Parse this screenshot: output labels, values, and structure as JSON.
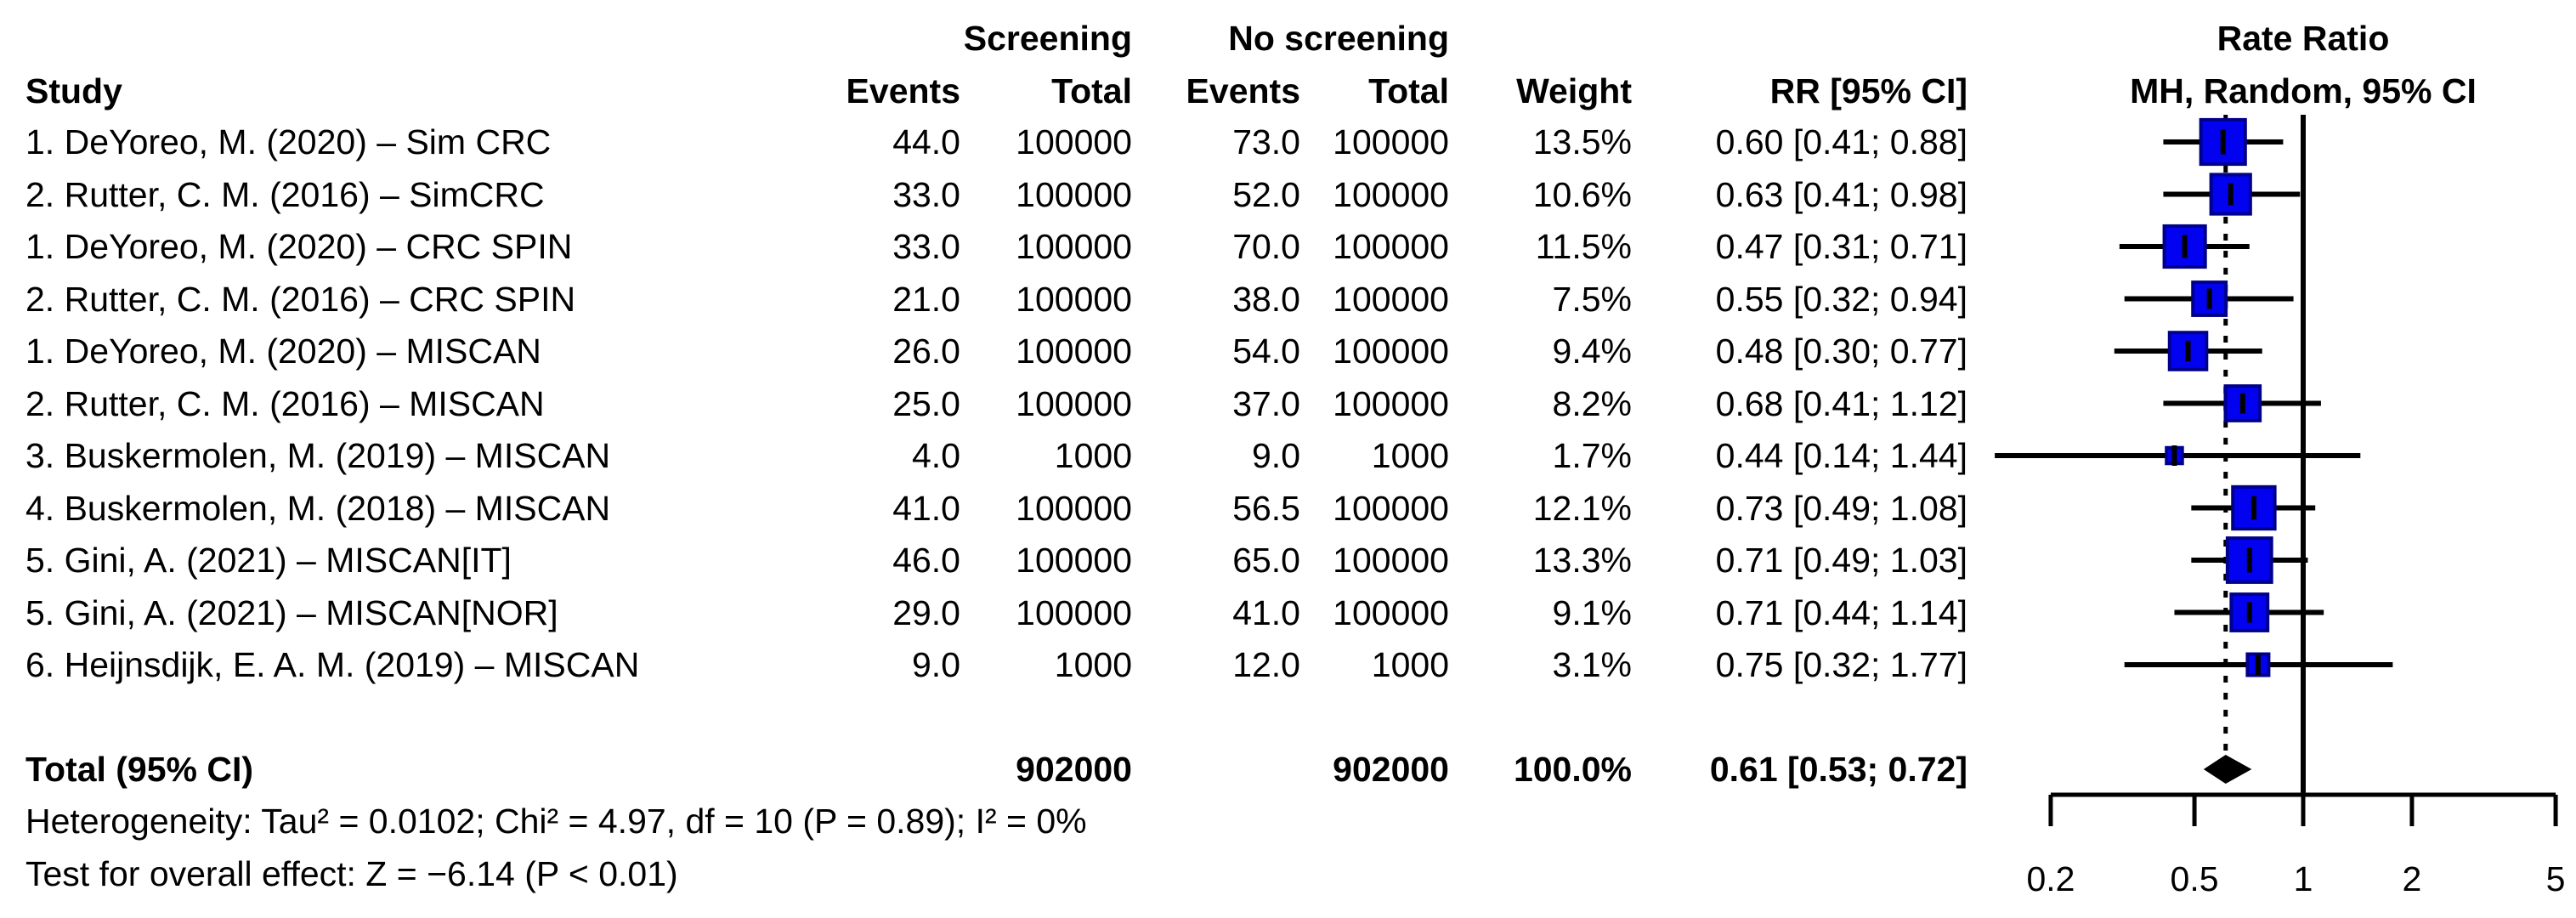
{
  "headers": {
    "study": "Study",
    "screening_group": "Screening",
    "no_screening_group": "No screening",
    "events": "Events",
    "total": "Total",
    "weight": "Weight",
    "rr_ci": "RR [95% CI]",
    "plot_title_line1": "Rate Ratio",
    "plot_title_line2": "MH, Random, 95% CI"
  },
  "chart_data": {
    "type": "forest",
    "x_scale": "log10",
    "axis_ticks": [
      "0.2",
      "0.5",
      "1",
      "2",
      "5"
    ],
    "axis_tick_values": [
      0.2,
      0.5,
      1,
      2,
      5
    ],
    "reference_line": 1,
    "studies": [
      {
        "name": "1. DeYoreo, M. (2020) – Sim CRC",
        "screening_events": "44.0",
        "screening_total": "100000",
        "no_screening_events": "73.0",
        "no_screening_total": "100000",
        "weight": "13.5%",
        "weight_value": 13.5,
        "rr": 0.6,
        "ci_low": 0.41,
        "ci_high": 0.88,
        "rr_text": "0.60 [0.41; 0.88]"
      },
      {
        "name": "2. Rutter, C. M. (2016) – SimCRC",
        "screening_events": "33.0",
        "screening_total": "100000",
        "no_screening_events": "52.0",
        "no_screening_total": "100000",
        "weight": "10.6%",
        "weight_value": 10.6,
        "rr": 0.63,
        "ci_low": 0.41,
        "ci_high": 0.98,
        "rr_text": "0.63 [0.41; 0.98]"
      },
      {
        "name": "1. DeYoreo, M. (2020) – CRC SPIN",
        "screening_events": "33.0",
        "screening_total": "100000",
        "no_screening_events": "70.0",
        "no_screening_total": "100000",
        "weight": "11.5%",
        "weight_value": 11.5,
        "rr": 0.47,
        "ci_low": 0.31,
        "ci_high": 0.71,
        "rr_text": "0.47 [0.31; 0.71]"
      },
      {
        "name": "2. Rutter, C. M. (2016) – CRC SPIN",
        "screening_events": "21.0",
        "screening_total": "100000",
        "no_screening_events": "38.0",
        "no_screening_total": "100000",
        "weight": "7.5%",
        "weight_value": 7.5,
        "rr": 0.55,
        "ci_low": 0.32,
        "ci_high": 0.94,
        "rr_text": "0.55 [0.32; 0.94]"
      },
      {
        "name": "1. DeYoreo, M. (2020) – MISCAN",
        "screening_events": "26.0",
        "screening_total": "100000",
        "no_screening_events": "54.0",
        "no_screening_total": "100000",
        "weight": "9.4%",
        "weight_value": 9.4,
        "rr": 0.48,
        "ci_low": 0.3,
        "ci_high": 0.77,
        "rr_text": "0.48 [0.30; 0.77]"
      },
      {
        "name": "2. Rutter, C. M. (2016) – MISCAN",
        "screening_events": "25.0",
        "screening_total": "100000",
        "no_screening_events": "37.0",
        "no_screening_total": "100000",
        "weight": "8.2%",
        "weight_value": 8.2,
        "rr": 0.68,
        "ci_low": 0.41,
        "ci_high": 1.12,
        "rr_text": "0.68 [0.41; 1.12]"
      },
      {
        "name": "3. Buskermolen, M. (2019) – MISCAN",
        "screening_events": "4.0",
        "screening_total": "1000",
        "no_screening_events": "9.0",
        "no_screening_total": "1000",
        "weight": "1.7%",
        "weight_value": 1.7,
        "rr": 0.44,
        "ci_low": 0.14,
        "ci_high": 1.44,
        "rr_text": "0.44 [0.14; 1.44]"
      },
      {
        "name": "4. Buskermolen, M. (2018) – MISCAN",
        "screening_events": "41.0",
        "screening_total": "100000",
        "no_screening_events": "56.5",
        "no_screening_total": "100000",
        "weight": "12.1%",
        "weight_value": 12.1,
        "rr": 0.73,
        "ci_low": 0.49,
        "ci_high": 1.08,
        "rr_text": "0.73 [0.49; 1.08]"
      },
      {
        "name": "5. Gini, A. (2021) – MISCAN[IT]",
        "screening_events": "46.0",
        "screening_total": "100000",
        "no_screening_events": "65.0",
        "no_screening_total": "100000",
        "weight": "13.3%",
        "weight_value": 13.3,
        "rr": 0.71,
        "ci_low": 0.49,
        "ci_high": 1.03,
        "rr_text": "0.71 [0.49; 1.03]"
      },
      {
        "name": "5. Gini, A. (2021) – MISCAN[NOR]",
        "screening_events": "29.0",
        "screening_total": "100000",
        "no_screening_events": "41.0",
        "no_screening_total": "100000",
        "weight": "9.1%",
        "weight_value": 9.1,
        "rr": 0.71,
        "ci_low": 0.44,
        "ci_high": 1.14,
        "rr_text": "0.71 [0.44; 1.14]"
      },
      {
        "name": "6. Heijnsdijk, E. A. M. (2019) – MISCAN",
        "screening_events": "9.0",
        "screening_total": "1000",
        "no_screening_events": "12.0",
        "no_screening_total": "1000",
        "weight": "3.1%",
        "weight_value": 3.1,
        "rr": 0.75,
        "ci_low": 0.32,
        "ci_high": 1.77,
        "rr_text": "0.75 [0.32; 1.77]"
      }
    ],
    "pooled": {
      "label": "Total (95% CI)",
      "screening_total": "902000",
      "no_screening_total": "902000",
      "weight": "100.0%",
      "rr": 0.61,
      "ci_low": 0.53,
      "ci_high": 0.72,
      "rr_text": "0.61 [0.53; 0.72]"
    },
    "colors": {
      "square_fill": "#0202F0",
      "square_border": "#00008B",
      "line": "#000000",
      "diamond": "#000000"
    }
  },
  "footer": {
    "heterogeneity": "Heterogeneity: Tau² = 0.0102; Chi² = 4.97, df = 10 (P = 0.89); I² = 0%",
    "overall_effect": "Test for overall effect: Z = −6.14 (P < 0.01)"
  }
}
